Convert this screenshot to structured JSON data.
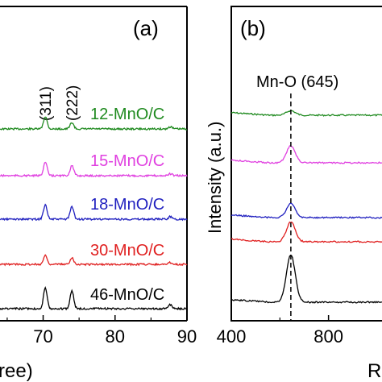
{
  "chart_data": [
    {
      "type": "line",
      "panel_label": "(a)",
      "xlabel_fragment": "ree)",
      "x_ticks": [
        "70",
        "80",
        "90"
      ],
      "xlim": [
        64,
        90
      ],
      "peak_labels": [
        {
          "text": "(311)",
          "x": 70.3
        },
        {
          "text": "(222)",
          "x": 74.0
        }
      ],
      "peaks": [
        70.3,
        74.0,
        87.7
      ],
      "series": [
        {
          "name": "12-MnO/C",
          "color": "#1f8a1f",
          "peak_heights": [
            0.55,
            0.28,
            0.1
          ]
        },
        {
          "name": "15-MnO/C",
          "color": "#e040e0",
          "peak_heights": [
            0.6,
            0.45,
            0.08
          ]
        },
        {
          "name": "18-MnO/C",
          "color": "#1f1fbf",
          "peak_heights": [
            0.65,
            0.55,
            0.12
          ]
        },
        {
          "name": "30-MnO/C",
          "color": "#e02020",
          "peak_heights": [
            0.4,
            0.3,
            0.08
          ]
        },
        {
          "name": "46-MnO/C",
          "color": "#000000",
          "peak_heights": [
            0.9,
            0.8,
            0.18
          ]
        }
      ]
    },
    {
      "type": "line",
      "panel_label": "(b)",
      "ylabel": "Intensity (a.u.)",
      "xlabel_fragment": "R",
      "x_ticks": [
        "400",
        "800"
      ],
      "xlim": [
        400,
        1030
      ],
      "annotation": "Mn-O (645)",
      "reference_line_x": 645,
      "series": [
        {
          "name": "12-MnO/C",
          "color": "#1f8a1f",
          "peak_height": 0.15
        },
        {
          "name": "15-MnO/C",
          "color": "#e040e0",
          "peak_height": 0.55
        },
        {
          "name": "18-MnO/C",
          "color": "#1f1fbf",
          "peak_height": 0.45
        },
        {
          "name": "30-MnO/C",
          "color": "#e02020",
          "peak_height": 0.65
        },
        {
          "name": "46-MnO/C",
          "color": "#000000",
          "peak_height": 1.55
        }
      ]
    }
  ]
}
